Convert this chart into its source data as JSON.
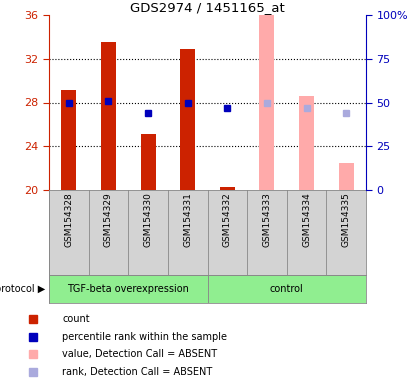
{
  "title": "GDS2974 / 1451165_at",
  "samples": [
    "GSM154328",
    "GSM154329",
    "GSM154330",
    "GSM154331",
    "GSM154332",
    "GSM154333",
    "GSM154334",
    "GSM154335"
  ],
  "left_ylim": [
    20,
    36
  ],
  "left_yticks": [
    20,
    24,
    28,
    32,
    36
  ],
  "right_ylim": [
    0,
    100
  ],
  "right_yticks": [
    0,
    25,
    50,
    75,
    100
  ],
  "right_yticklabels": [
    "0",
    "25",
    "50",
    "75",
    "100%"
  ],
  "bar_width": 0.38,
  "red_bars": {
    "indices": [
      0,
      1,
      2,
      3,
      4
    ],
    "values": [
      29.1,
      33.5,
      25.1,
      32.9,
      20.3
    ],
    "color": "#cc2200"
  },
  "pink_bars": {
    "indices": [
      5,
      6,
      7
    ],
    "values": [
      36.0,
      28.6,
      22.5
    ],
    "color": "#ffaaaa"
  },
  "blue_squares": {
    "indices": [
      0,
      1,
      2,
      3,
      4
    ],
    "values": [
      50,
      51,
      44,
      50,
      47
    ],
    "color": "#0000bb"
  },
  "light_blue_squares": {
    "indices": [
      5,
      6,
      7
    ],
    "values": [
      50,
      47,
      44
    ],
    "color": "#aaaadd"
  },
  "grid_yticks": [
    24,
    28,
    32
  ],
  "legend_items": [
    {
      "label": "count",
      "color": "#cc2200"
    },
    {
      "label": "percentile rank within the sample",
      "color": "#0000bb"
    },
    {
      "label": "value, Detection Call = ABSENT",
      "color": "#ffaaaa"
    },
    {
      "label": "rank, Detection Call = ABSENT",
      "color": "#aaaadd"
    }
  ],
  "left_axis_color": "#cc2200",
  "right_axis_color": "#0000bb",
  "sample_bg_color": "#d3d3d3",
  "proto_group1_label": "TGF-beta overexpression",
  "proto_group2_label": "control",
  "proto_color": "#90ee90",
  "protocol_text": "protocol"
}
